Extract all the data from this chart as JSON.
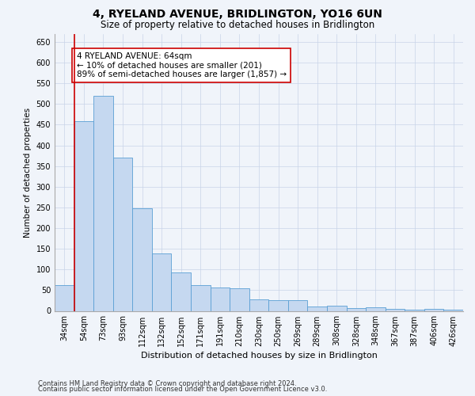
{
  "title": "4, RYELAND AVENUE, BRIDLINGTON, YO16 6UN",
  "subtitle": "Size of property relative to detached houses in Bridlington",
  "xlabel": "Distribution of detached houses by size in Bridlington",
  "ylabel": "Number of detached properties",
  "categories": [
    "34sqm",
    "54sqm",
    "73sqm",
    "93sqm",
    "112sqm",
    "132sqm",
    "152sqm",
    "171sqm",
    "191sqm",
    "210sqm",
    "230sqm",
    "250sqm",
    "269sqm",
    "289sqm",
    "308sqm",
    "328sqm",
    "348sqm",
    "367sqm",
    "387sqm",
    "406sqm",
    "426sqm"
  ],
  "values": [
    62,
    458,
    520,
    370,
    248,
    138,
    93,
    62,
    57,
    55,
    27,
    25,
    26,
    11,
    12,
    6,
    9,
    4,
    3,
    5,
    3
  ],
  "bar_color": "#c5d8f0",
  "bar_edge_color": "#5a9fd4",
  "vline_color": "#cc0000",
  "annotation_text": "4 RYELAND AVENUE: 64sqm\n← 10% of detached houses are smaller (201)\n89% of semi-detached houses are larger (1,857) →",
  "annotation_box_color": "#ffffff",
  "annotation_box_edge": "#cc0000",
  "ylim": [
    0,
    670
  ],
  "yticks": [
    0,
    50,
    100,
    150,
    200,
    250,
    300,
    350,
    400,
    450,
    500,
    550,
    600,
    650
  ],
  "footer1": "Contains HM Land Registry data © Crown copyright and database right 2024.",
  "footer2": "Contains public sector information licensed under the Open Government Licence v3.0.",
  "bg_color": "#f0f4fa",
  "grid_color": "#c8d4e8",
  "title_fontsize": 10,
  "subtitle_fontsize": 8.5,
  "xlabel_fontsize": 8,
  "ylabel_fontsize": 7.5,
  "tick_fontsize": 7,
  "annotation_fontsize": 7.5,
  "footer_fontsize": 6
}
